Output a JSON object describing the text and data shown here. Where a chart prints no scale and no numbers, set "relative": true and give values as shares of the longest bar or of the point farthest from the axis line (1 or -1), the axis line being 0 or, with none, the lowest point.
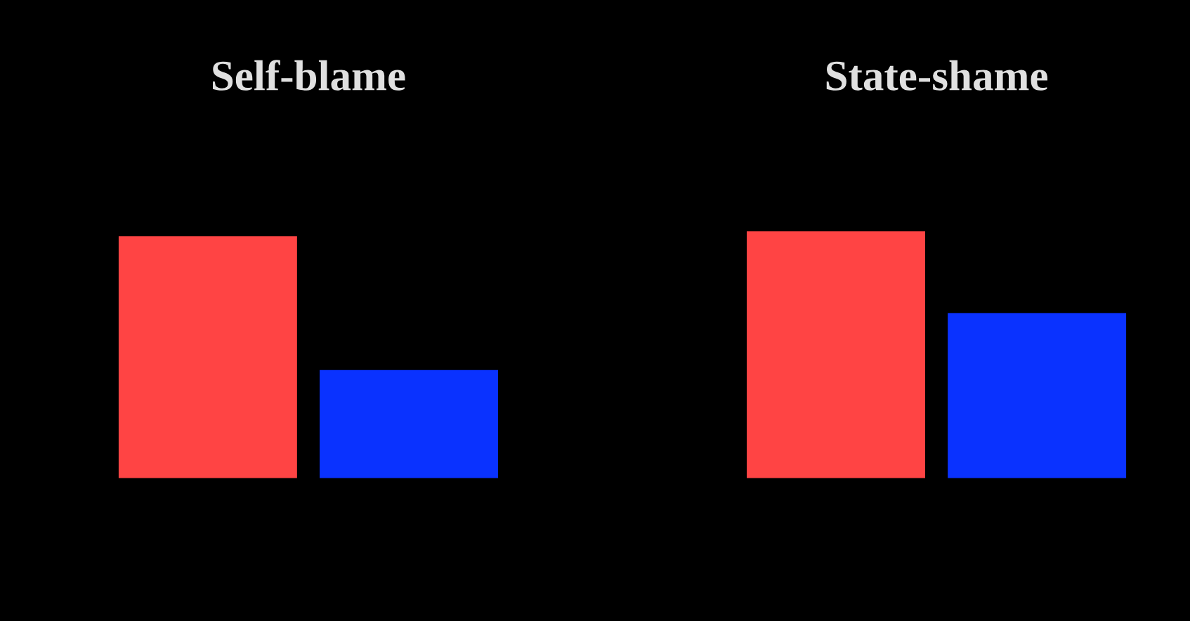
{
  "chart_data": {
    "type": "bar",
    "categories": [
      "Self-blame",
      "State-shame"
    ],
    "relative": true,
    "series": [
      {
        "color": "#ff4444",
        "values": [
          0.98,
          1
        ]
      },
      {
        "color": "#0a32ff",
        "values": [
          0.44,
          0.67
        ]
      }
    ]
  }
}
